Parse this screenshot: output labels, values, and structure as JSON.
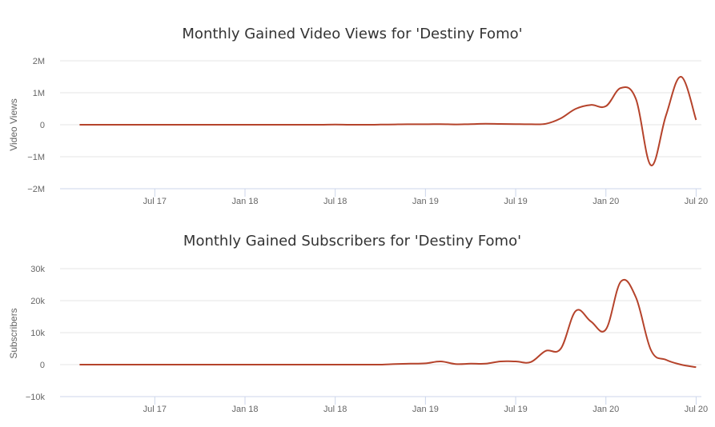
{
  "chart_data": [
    {
      "type": "line",
      "title": "Monthly Gained Video Views for 'Destiny Fomo'",
      "xlabel": "",
      "ylabel": "Video Views",
      "x_tick_labels": [
        "Jul 17",
        "Jan 18",
        "Jul 18",
        "Jan 19",
        "Jul 19",
        "Jan 20",
        "Jul 20"
      ],
      "y_tick_labels": [
        "2M",
        "1M",
        "0",
        "−1M",
        "−2M"
      ],
      "ylim": [
        -2000000,
        2000000
      ],
      "grid": true,
      "legend": "none",
      "color": "#b5432b",
      "series": [
        {
          "x": [
            "2017-02",
            "2017-03",
            "2017-04",
            "2017-05",
            "2017-06",
            "2017-07",
            "2017-08",
            "2017-09",
            "2017-10",
            "2017-11",
            "2017-12",
            "2018-01",
            "2018-02",
            "2018-03",
            "2018-04",
            "2018-05",
            "2018-06",
            "2018-07",
            "2018-08",
            "2018-09",
            "2018-10",
            "2018-11",
            "2018-12",
            "2019-01",
            "2019-02",
            "2019-03",
            "2019-04",
            "2019-05",
            "2019-06",
            "2019-07",
            "2019-08",
            "2019-09",
            "2019-10",
            "2019-11",
            "2019-12",
            "2020-01",
            "2020-02",
            "2020-03",
            "2020-04",
            "2020-05",
            "2020-06",
            "2020-07"
          ],
          "values": [
            0,
            0,
            0,
            0,
            0,
            0,
            0,
            0,
            0,
            0,
            0,
            0,
            0,
            0,
            0,
            0,
            0,
            5000,
            0,
            0,
            5000,
            10000,
            15000,
            15000,
            20000,
            10000,
            20000,
            30000,
            25000,
            20000,
            15000,
            30000,
            200000,
            500000,
            620000,
            580000,
            1150000,
            800000,
            -1270000,
            300000,
            1500000,
            150000
          ]
        }
      ]
    },
    {
      "type": "line",
      "title": "Monthly Gained Subscribers for 'Destiny Fomo'",
      "xlabel": "",
      "ylabel": "Subscribers",
      "x_tick_labels": [
        "Jul 17",
        "Jan 18",
        "Jul 18",
        "Jan 19",
        "Jul 19",
        "Jan 20",
        "Jul 20"
      ],
      "y_tick_labels": [
        "30k",
        "20k",
        "10k",
        "0",
        "−10k"
      ],
      "ylim": [
        -10000,
        30000
      ],
      "grid": true,
      "legend": "none",
      "color": "#b5432b",
      "series": [
        {
          "x": [
            "2017-02",
            "2017-03",
            "2017-04",
            "2017-05",
            "2017-06",
            "2017-07",
            "2017-08",
            "2017-09",
            "2017-10",
            "2017-11",
            "2017-12",
            "2018-01",
            "2018-02",
            "2018-03",
            "2018-04",
            "2018-05",
            "2018-06",
            "2018-07",
            "2018-08",
            "2018-09",
            "2018-10",
            "2018-11",
            "2018-12",
            "2019-01",
            "2019-02",
            "2019-03",
            "2019-04",
            "2019-05",
            "2019-06",
            "2019-07",
            "2019-08",
            "2019-09",
            "2019-10",
            "2019-11",
            "2019-12",
            "2020-01",
            "2020-02",
            "2020-03",
            "2020-04",
            "2020-05",
            "2020-06",
            "2020-07"
          ],
          "values": [
            0,
            0,
            0,
            0,
            0,
            0,
            0,
            0,
            0,
            0,
            0,
            0,
            0,
            0,
            0,
            0,
            0,
            0,
            0,
            0,
            0,
            200,
            300,
            400,
            1000,
            200,
            300,
            300,
            1000,
            1000,
            800,
            4300,
            5000,
            16800,
            13500,
            11000,
            26000,
            21000,
            4500,
            1500,
            0,
            -800
          ]
        }
      ]
    }
  ]
}
